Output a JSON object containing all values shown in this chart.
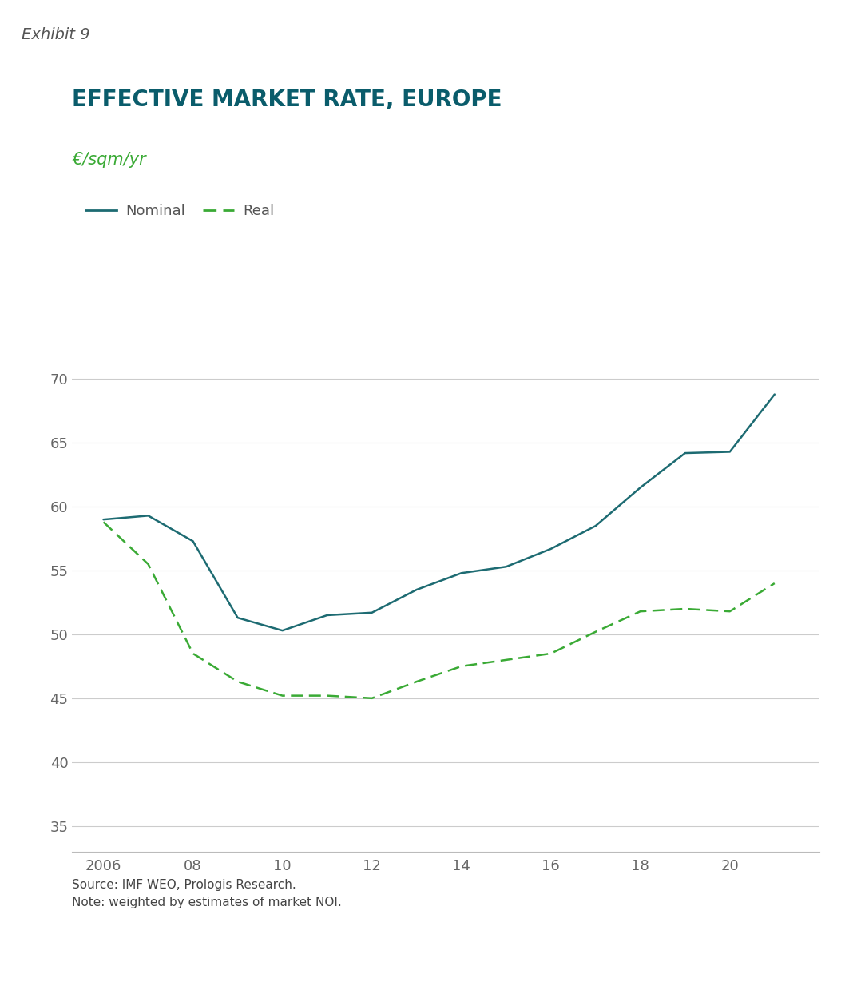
{
  "exhibit_label": "Exhibit 9",
  "title": "EFFECTIVE MARKET RATE, EUROPE",
  "subtitle": "€/sqm/yr",
  "source_text": "Source: IMF WEO, Prologis Research.\nNote: weighted by estimates of market NOI.",
  "nominal_x": [
    2006,
    2007,
    2008,
    2009,
    2010,
    2011,
    2012,
    2013,
    2014,
    2015,
    2016,
    2017,
    2018,
    2019,
    2020,
    2021
  ],
  "nominal_y": [
    59.0,
    59.3,
    57.3,
    51.3,
    50.3,
    51.5,
    51.7,
    53.5,
    54.8,
    55.3,
    56.7,
    58.5,
    61.5,
    64.2,
    64.3,
    68.8
  ],
  "real_x": [
    2006,
    2007,
    2008,
    2009,
    2010,
    2011,
    2012,
    2013,
    2014,
    2015,
    2016,
    2017,
    2018,
    2019,
    2020,
    2021
  ],
  "real_y": [
    58.8,
    55.5,
    48.5,
    46.3,
    45.2,
    45.2,
    45.0,
    46.3,
    47.5,
    48.0,
    48.5,
    50.2,
    51.8,
    52.0,
    51.8,
    54.0
  ],
  "nominal_color": "#1d6b72",
  "real_color": "#3aaa35",
  "exhibit_bg": "#d8d8d8",
  "exhibit_text_color": "#5aaa6a",
  "title_color": "#0a5c6b",
  "subtitle_color": "#3aaa35",
  "legend_text_color": "#555555",
  "ylim": [
    33,
    72
  ],
  "yticks": [
    35,
    40,
    45,
    50,
    55,
    60,
    65,
    70
  ],
  "xticks": [
    2006,
    2008,
    2010,
    2012,
    2014,
    2016,
    2018,
    2020
  ],
  "xticklabels": [
    "2006",
    "08",
    "10",
    "12",
    "14",
    "16",
    "18",
    "20"
  ],
  "grid_color": "#cccccc",
  "bg_color": "#ffffff",
  "tick_color": "#666666",
  "spine_color": "#bbbbbb"
}
